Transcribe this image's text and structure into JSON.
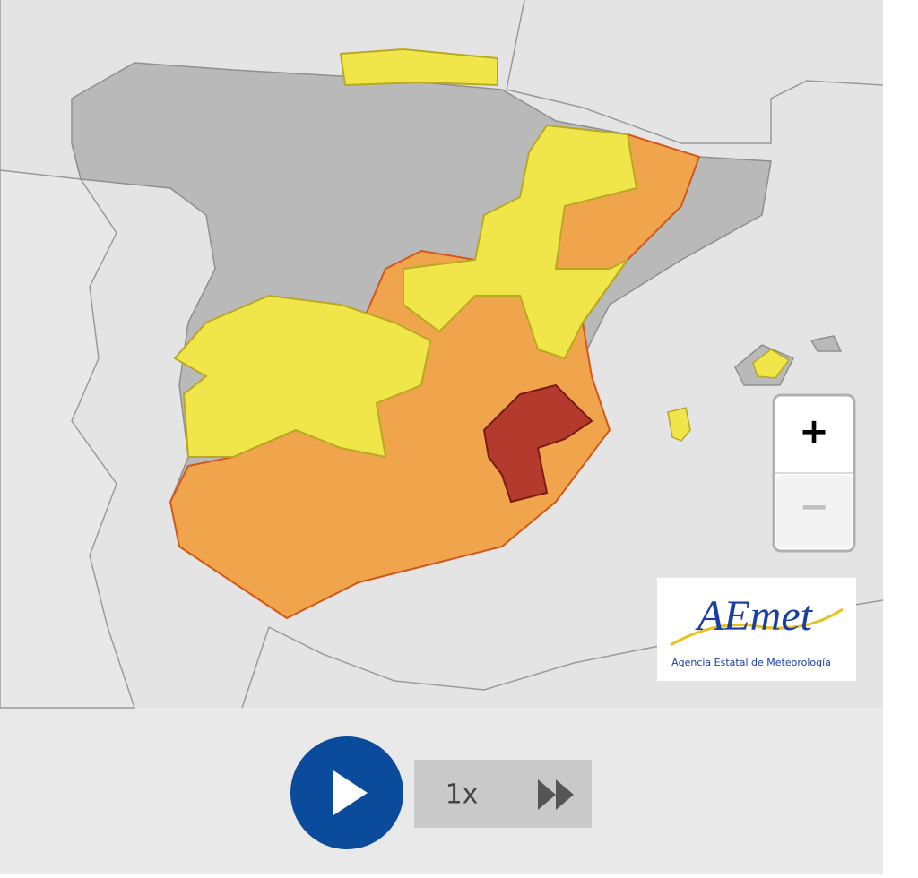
{
  "zoom": {
    "in": "+",
    "out": "−"
  },
  "logo": {
    "title": "AEmet",
    "subtitle": "Agencia Estatal de Meteorología"
  },
  "playback": {
    "speed": "1x"
  }
}
